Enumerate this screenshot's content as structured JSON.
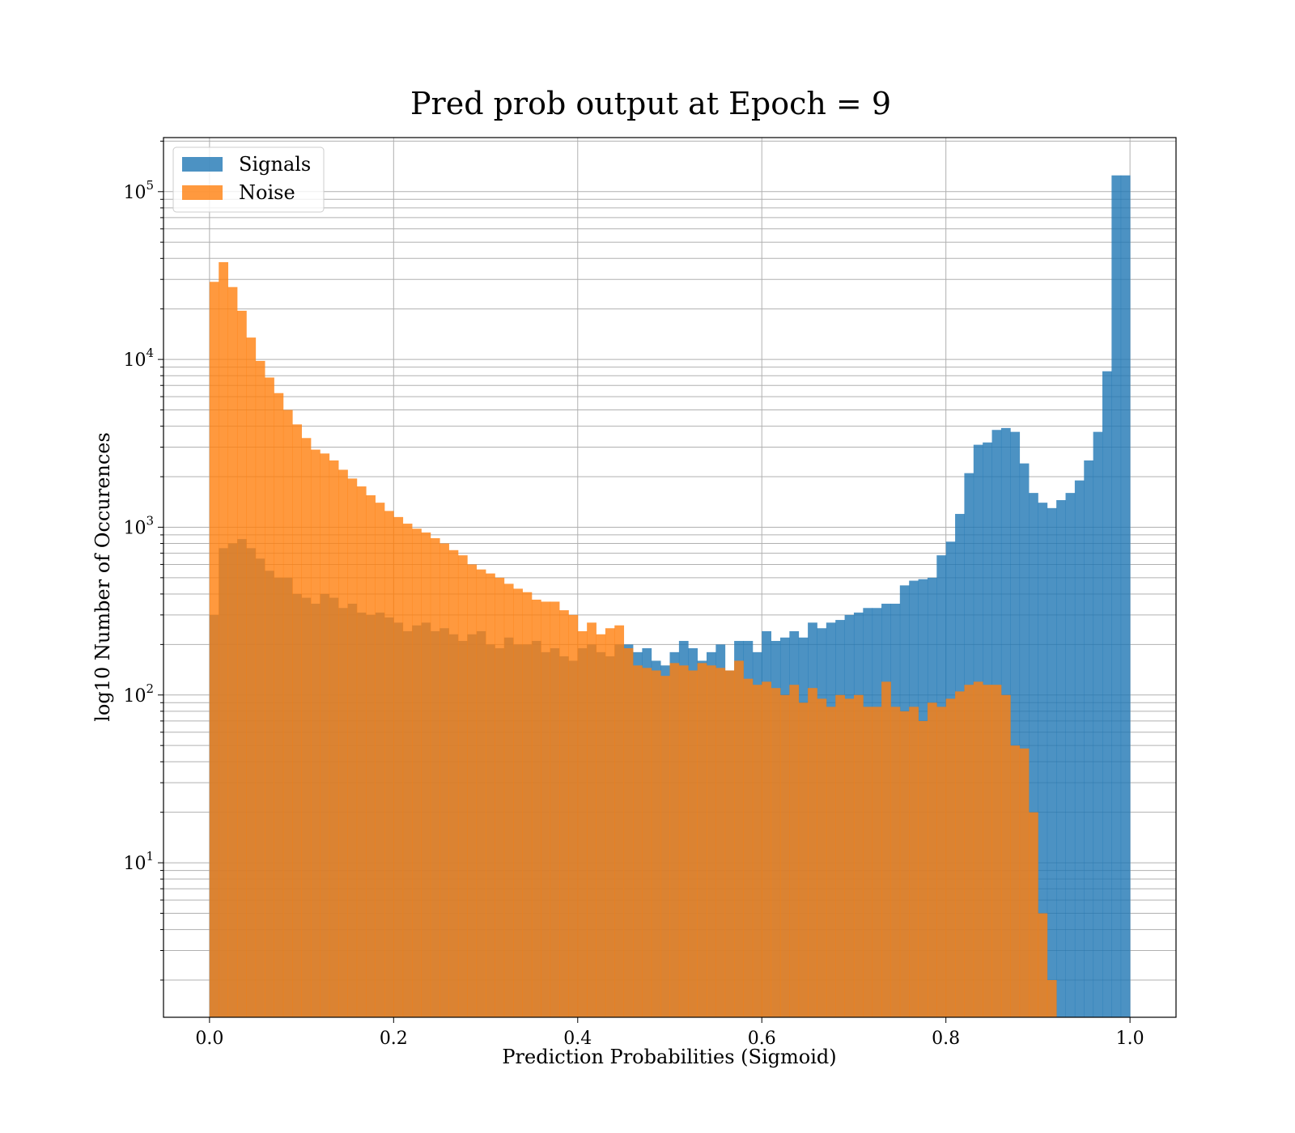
{
  "chart_data": {
    "type": "bar",
    "title": "Pred prob output at Epoch = 9",
    "xlabel": "Prediction Probabilities (Sigmoid)",
    "ylabel": "log10 Number of Occurences",
    "yscale": "log",
    "xlim": [
      -0.05,
      1.05
    ],
    "ylim": [
      1.2,
      210000
    ],
    "grid": true,
    "x_ticks": [
      0.0,
      0.2,
      0.4,
      0.6,
      0.8,
      1.0
    ],
    "x_tick_labels": [
      "0.0",
      "0.2",
      "0.4",
      "0.6",
      "0.8",
      "1.0"
    ],
    "y_ticks": [
      10,
      100,
      1000,
      10000,
      100000
    ],
    "y_tick_bases": [
      "10",
      "10",
      "10",
      "10",
      "10"
    ],
    "y_tick_exponents": [
      "1",
      "2",
      "3",
      "4",
      "5"
    ],
    "legend_position": "upper-left",
    "bins": 100,
    "bin_range": [
      0.0,
      1.0
    ],
    "series": [
      {
        "name": "Signals",
        "color": "#1f77b4",
        "opacity": 0.8,
        "values": [
          300,
          750,
          800,
          850,
          750,
          650,
          550,
          500,
          500,
          400,
          380,
          350,
          400,
          380,
          330,
          350,
          310,
          300,
          310,
          290,
          270,
          240,
          260,
          270,
          240,
          250,
          230,
          210,
          230,
          240,
          200,
          190,
          220,
          200,
          200,
          210,
          180,
          190,
          170,
          160,
          190,
          200,
          180,
          170,
          200,
          200,
          180,
          190,
          160,
          150,
          180,
          210,
          190,
          160,
          180,
          200,
          140,
          210,
          210,
          180,
          240,
          210,
          220,
          240,
          220,
          270,
          250,
          270,
          280,
          300,
          310,
          330,
          330,
          350,
          350,
          450,
          480,
          490,
          500,
          680,
          820,
          1200,
          2100,
          3100,
          3200,
          3800,
          3900,
          3700,
          2400,
          1600,
          1400,
          1300,
          1450,
          1600,
          1900,
          2500,
          3700,
          8500,
          125000,
          125000
        ]
      },
      {
        "name": "Noise",
        "color": "#ff7f0e",
        "opacity": 0.8,
        "values": [
          29000,
          38000,
          27000,
          19500,
          13500,
          9800,
          7800,
          6300,
          5000,
          4100,
          3400,
          2900,
          2750,
          2500,
          2200,
          1950,
          1750,
          1550,
          1400,
          1250,
          1150,
          1050,
          980,
          930,
          860,
          800,
          730,
          680,
          600,
          560,
          530,
          500,
          460,
          430,
          410,
          370,
          360,
          360,
          320,
          300,
          240,
          270,
          230,
          250,
          260,
          190,
          150,
          145,
          140,
          130,
          155,
          150,
          140,
          155,
          150,
          145,
          140,
          160,
          125,
          115,
          120,
          110,
          100,
          115,
          90,
          110,
          95,
          85,
          100,
          95,
          100,
          85,
          85,
          120,
          85,
          80,
          85,
          70,
          90,
          85,
          95,
          105,
          115,
          120,
          115,
          115,
          100,
          50,
          48,
          20,
          5,
          2,
          1,
          1,
          1,
          1,
          1,
          1,
          1,
          1
        ]
      }
    ]
  }
}
